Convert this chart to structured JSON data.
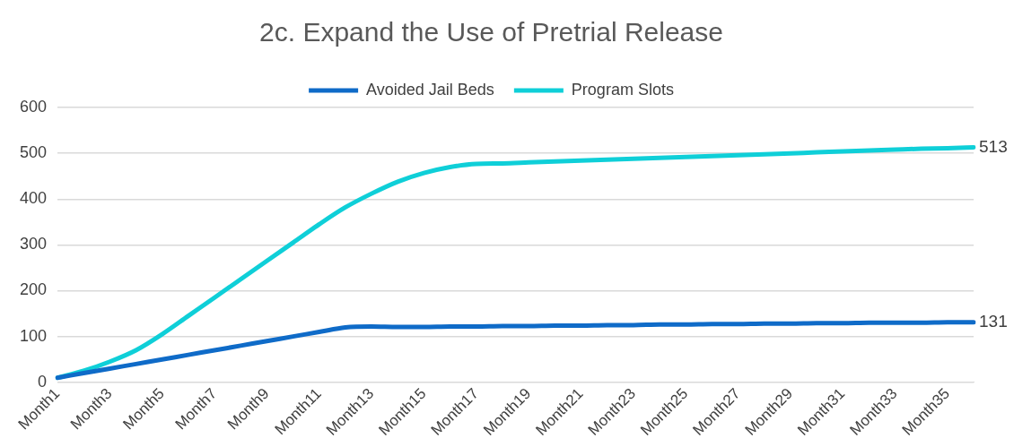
{
  "chart_data": {
    "type": "line",
    "title": "2c. Expand the Use of Pretrial Release",
    "categories": [
      "Month1",
      null,
      "Month3",
      null,
      "Month5",
      null,
      "Month7",
      null,
      "Month9",
      null,
      "Month11",
      null,
      "Month13",
      null,
      "Month15",
      null,
      "Month17",
      null,
      "Month19",
      null,
      "Month21",
      null,
      "Month23",
      null,
      "Month25",
      null,
      "Month27",
      null,
      "Month29",
      null,
      "Month31",
      null,
      "Month33",
      null,
      "Month35",
      null
    ],
    "series": [
      {
        "name": "Avoided Jail Beds",
        "color": "#0f6bc8",
        "values": [
          10,
          20,
          30,
          40,
          50,
          60,
          70,
          80,
          90,
          100,
          110,
          120,
          122,
          121,
          121,
          122,
          122,
          123,
          123,
          124,
          124,
          125,
          125,
          126,
          126,
          127,
          127,
          128,
          128,
          129,
          129,
          130,
          130,
          130,
          131,
          131
        ],
        "value_labels": [
          null,
          null,
          null,
          null,
          null,
          null,
          null,
          null,
          null,
          null,
          null,
          null,
          null,
          null,
          null,
          null,
          null,
          null,
          null,
          null,
          null,
          null,
          null,
          null,
          null,
          null,
          null,
          null,
          null,
          null,
          null,
          null,
          null,
          null,
          null,
          "131"
        ]
      },
      {
        "name": "Program Slots",
        "color": "#0fcfd8",
        "values": [
          10,
          25,
          45,
          70,
          105,
          145,
          185,
          225,
          265,
          305,
          345,
          382,
          412,
          438,
          457,
          470,
          477,
          478,
          480,
          482,
          484,
          486,
          488,
          490,
          492,
          494,
          496,
          498,
          500,
          502,
          504,
          506,
          508,
          510,
          511,
          513
        ],
        "value_labels": [
          null,
          null,
          null,
          null,
          null,
          null,
          null,
          null,
          null,
          null,
          null,
          null,
          null,
          null,
          null,
          null,
          null,
          null,
          null,
          null,
          null,
          null,
          null,
          null,
          null,
          null,
          null,
          null,
          null,
          null,
          null,
          null,
          null,
          null,
          null,
          "513"
        ]
      }
    ],
    "ylim": [
      0,
      600
    ],
    "yticks": [
      0,
      100,
      200,
      300,
      400,
      500,
      600
    ],
    "grid": "y",
    "legend": "top",
    "marker": "none",
    "line_style": "solid"
  }
}
